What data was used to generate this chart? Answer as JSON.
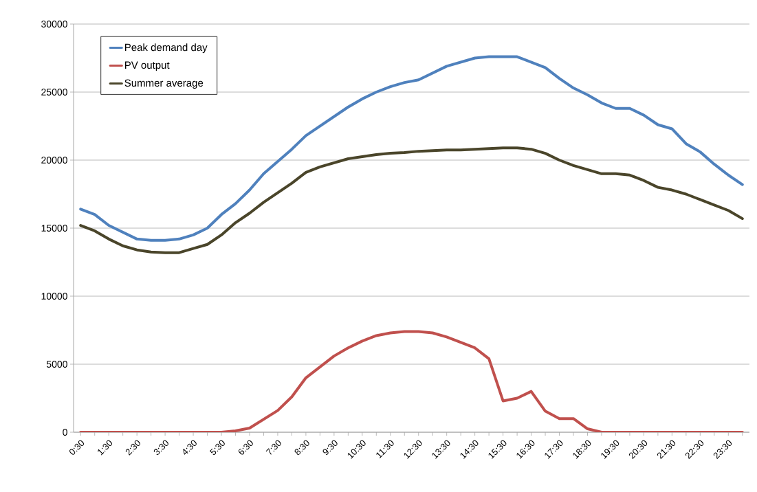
{
  "chart_data": {
    "type": "line",
    "categories": [
      "0:30",
      null,
      "1:30",
      null,
      "2:30",
      null,
      "3:30",
      null,
      "4:30",
      null,
      "5:30",
      null,
      "6:30",
      null,
      "7:30",
      null,
      "8:30",
      null,
      "9:30",
      null,
      "10:30",
      null,
      "11:30",
      null,
      "12:30",
      null,
      "13:30",
      null,
      "14:30",
      null,
      "15:30",
      null,
      "16:30",
      null,
      "17:30",
      null,
      "18:30",
      null,
      "19:30",
      null,
      "20:30",
      null,
      "21:30",
      null,
      "22:30",
      null,
      "23:30",
      null
    ],
    "series": [
      {
        "name": "Peak demand day",
        "color": "#4f81bd",
        "values": [
          16400,
          16000,
          15200,
          14700,
          14200,
          14100,
          14100,
          14200,
          14500,
          15000,
          16000,
          16800,
          17800,
          19000,
          19900,
          20800,
          21800,
          22500,
          23200,
          23900,
          24500,
          25000,
          25400,
          25700,
          25900,
          26400,
          26900,
          27200,
          27500,
          27600,
          27600,
          27600,
          27200,
          26800,
          26000,
          25300,
          24800,
          24200,
          23800,
          23800,
          23300,
          22600,
          22300,
          21200,
          20600,
          19700,
          18900,
          18200
        ]
      },
      {
        "name": "PV output",
        "color": "#c0504d",
        "values": [
          0,
          0,
          0,
          0,
          0,
          0,
          0,
          0,
          0,
          0,
          0,
          100,
          300,
          950,
          1600,
          2600,
          4000,
          4800,
          5600,
          6200,
          6700,
          7100,
          7300,
          7400,
          7400,
          7300,
          7000,
          6600,
          6200,
          5400,
          2300,
          2500,
          3000,
          1550,
          1000,
          1000,
          250,
          0,
          0,
          0,
          0,
          0,
          0,
          0,
          0,
          0,
          0,
          0
        ]
      },
      {
        "name": "Summer average",
        "color": "#4a452a",
        "values": [
          15200,
          14800,
          14200,
          13700,
          13400,
          13250,
          13200,
          13200,
          13500,
          13800,
          14500,
          15400,
          16100,
          16900,
          17600,
          18300,
          19100,
          19500,
          19800,
          20100,
          20250,
          20400,
          20500,
          20550,
          20650,
          20700,
          20750,
          20750,
          20800,
          20850,
          20900,
          20900,
          20800,
          20500,
          20000,
          19600,
          19300,
          19000,
          19000,
          18900,
          18500,
          18000,
          17800,
          17500,
          17100,
          16700,
          16300,
          15700
        ]
      }
    ],
    "ylim": [
      0,
      30000
    ],
    "yticks": [
      0,
      5000,
      10000,
      15000,
      20000,
      25000,
      30000
    ],
    "grid": "y",
    "legend": "top left"
  }
}
